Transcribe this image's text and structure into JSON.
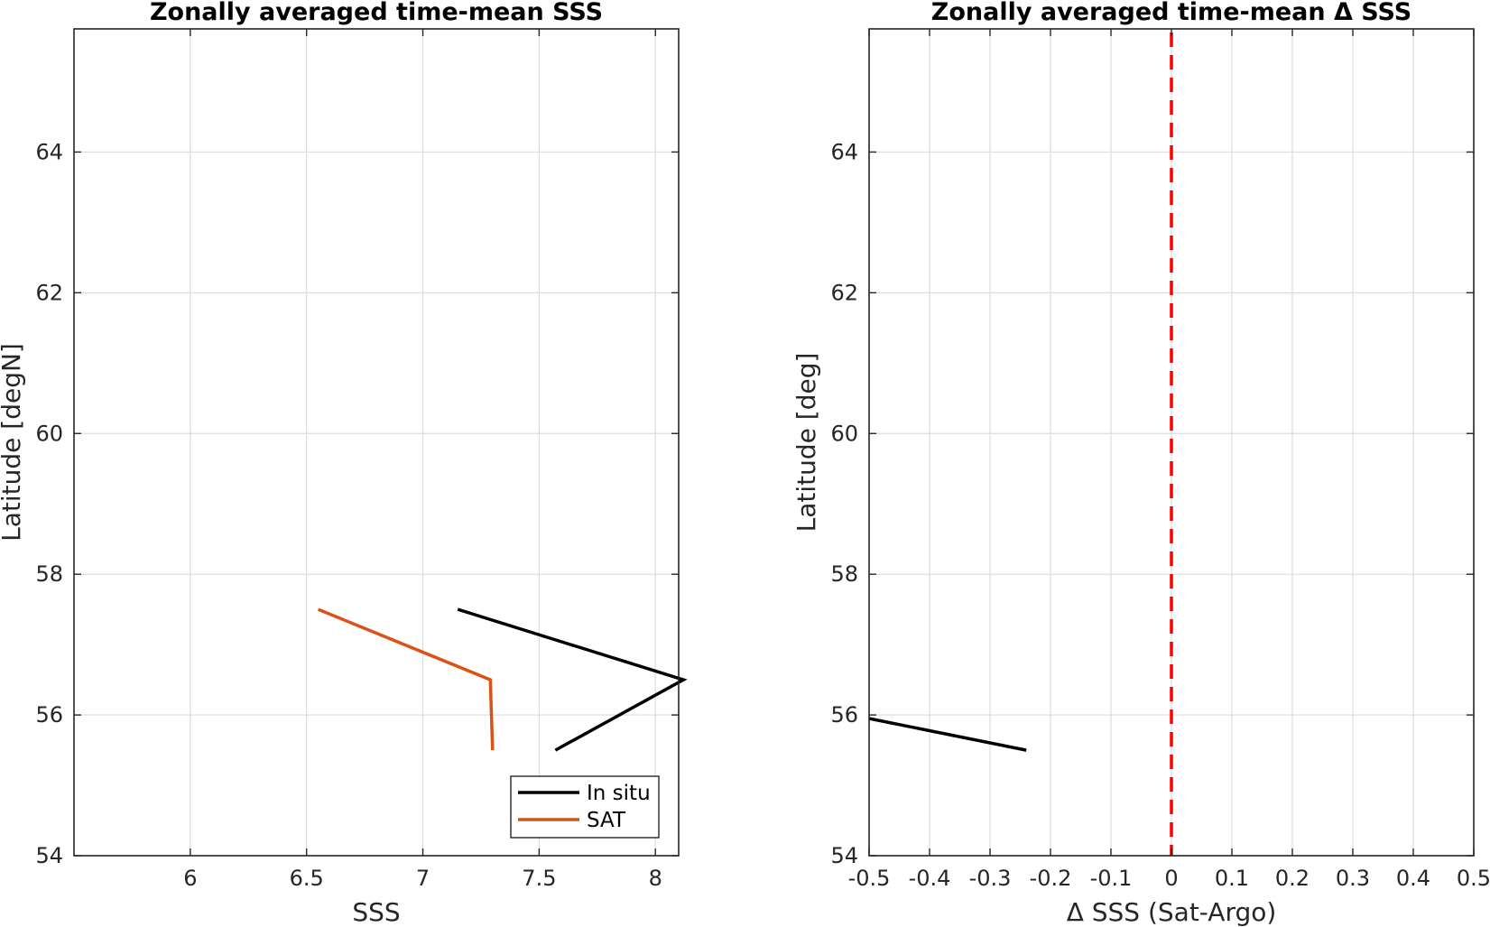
{
  "chart_data": [
    {
      "type": "line",
      "title": "Zonally averaged time-mean SSS",
      "xlabel": "SSS",
      "ylabel": "Latitude [degN]",
      "xlim": [
        5.5,
        8.1
      ],
      "ylim": [
        54,
        65.75
      ],
      "xticks": [
        6,
        6.5,
        7,
        7.5,
        8
      ],
      "xtick_labels": [
        "6",
        "6.5",
        "7",
        "7.5",
        "8"
      ],
      "yticks": [
        54,
        56,
        58,
        60,
        62,
        64
      ],
      "ytick_labels": [
        "54",
        "56",
        "58",
        "60",
        "62",
        "64"
      ],
      "grid": true,
      "legend_position": "bottom-right",
      "series": [
        {
          "name": "In situ",
          "color": "#000000",
          "x": [
            7.15,
            8.12,
            7.57
          ],
          "y": [
            57.5,
            56.5,
            55.5
          ]
        },
        {
          "name": "SAT",
          "color": "#D95319",
          "x": [
            6.55,
            7.29,
            7.3
          ],
          "y": [
            57.5,
            56.5,
            55.5
          ]
        }
      ]
    },
    {
      "type": "line",
      "title": "Zonally averaged time-mean Δ SSS",
      "xlabel": "Δ SSS (Sat-Argo)",
      "ylabel": "Latitude [deg]",
      "xlim": [
        -0.5,
        0.5
      ],
      "ylim": [
        54,
        65.75
      ],
      "xticks": [
        -0.5,
        -0.4,
        -0.3,
        -0.2,
        -0.1,
        0,
        0.1,
        0.2,
        0.3,
        0.4,
        0.5
      ],
      "xtick_labels": [
        "-0.5",
        "-0.4",
        "-0.3",
        "-0.2",
        "-0.1",
        "0",
        "0.1",
        "0.2",
        "0.3",
        "0.4",
        "0.5"
      ],
      "yticks": [
        54,
        56,
        58,
        60,
        62,
        64
      ],
      "ytick_labels": [
        "54",
        "56",
        "58",
        "60",
        "62",
        "64"
      ],
      "grid": true,
      "reference_line": {
        "x": 0,
        "style": "dashed",
        "color": "#FF0000"
      },
      "series": [
        {
          "color": "#000000",
          "x": [
            -0.5,
            -0.24
          ],
          "y": [
            55.95,
            55.5
          ]
        }
      ]
    }
  ]
}
